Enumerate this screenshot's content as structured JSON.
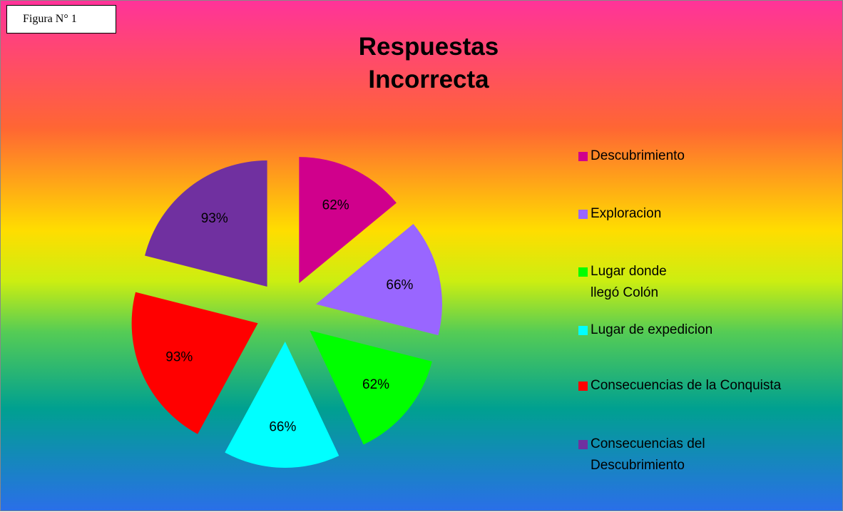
{
  "chart_data": {
    "type": "pie",
    "title": "Respuestas Incorrecta",
    "annotation": "Figura N° 1",
    "categories": [
      "Descubrimiento",
      "Exploracion",
      "Lugar donde llegó Colón",
      "Lugar de expedicion",
      "Consecuencias de la Conquista",
      "Consecuencias del Descubrimiento"
    ],
    "values": [
      62,
      66,
      62,
      66,
      93,
      93
    ],
    "value_labels": [
      "62%",
      "66%",
      "62%",
      "66%",
      "93%",
      "93%"
    ],
    "colors": [
      "#d0008c",
      "#9966ff",
      "#00ff00",
      "#00ffff",
      "#ff0000",
      "#7030a0"
    ],
    "legend": "right"
  }
}
